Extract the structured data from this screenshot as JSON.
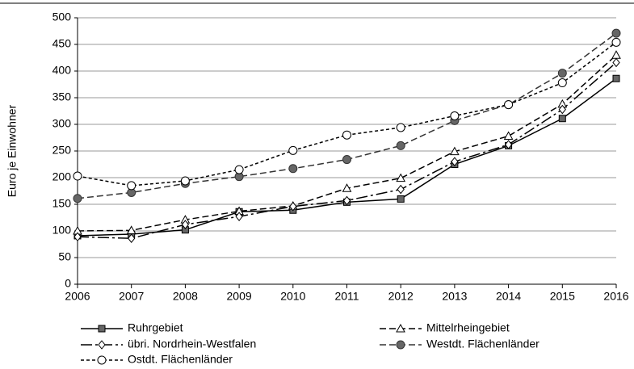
{
  "chart_data": {
    "type": "line",
    "y_label": "Euro je Einwohner",
    "x": [
      2006,
      2007,
      2008,
      2009,
      2010,
      2011,
      2012,
      2013,
      2014,
      2015,
      2016
    ],
    "xlim": [
      2006,
      2016
    ],
    "xticks": [
      2006,
      2007,
      2008,
      2009,
      2010,
      2011,
      2012,
      2013,
      2014,
      2015,
      2016
    ],
    "ylim": [
      0,
      500
    ],
    "yticks": [
      0,
      50,
      100,
      150,
      200,
      250,
      300,
      350,
      400,
      450,
      500
    ],
    "grid": true,
    "series": [
      {
        "name": "Ruhrgebiet",
        "color": "#000000",
        "marker": "square",
        "marker_fill": "#666666",
        "dash": "solid",
        "values": [
          91,
          94,
          102,
          136,
          139,
          154,
          160,
          225,
          260,
          311,
          386
        ]
      },
      {
        "name": "Mittelrheingebiet",
        "color": "#000000",
        "marker": "triangle",
        "marker_fill": "#ffffff",
        "dash": "dashed",
        "values": [
          100,
          101,
          121,
          137,
          147,
          180,
          199,
          249,
          278,
          338,
          430
        ]
      },
      {
        "name": "übri. Nordrhein-Westfalen",
        "color": "#000000",
        "marker": "diamond",
        "marker_fill": "#ffffff",
        "dash": "dashdot",
        "values": [
          89,
          86,
          112,
          127,
          146,
          157,
          178,
          230,
          262,
          328,
          416
        ]
      },
      {
        "name": "Westdt. Flächenländer",
        "color": "#333333",
        "marker": "circle",
        "marker_fill": "#666666",
        "dash": "dashed",
        "values": [
          161,
          172,
          189,
          202,
          217,
          234,
          260,
          307,
          337,
          396,
          471
        ]
      },
      {
        "name": "Ostdt. Flächenländer",
        "color": "#000000",
        "marker": "circle",
        "marker_fill": "#ffffff",
        "dash": "dotted",
        "values": [
          203,
          185,
          194,
          215,
          251,
          280,
          294,
          316,
          337,
          378,
          454
        ]
      }
    ]
  }
}
